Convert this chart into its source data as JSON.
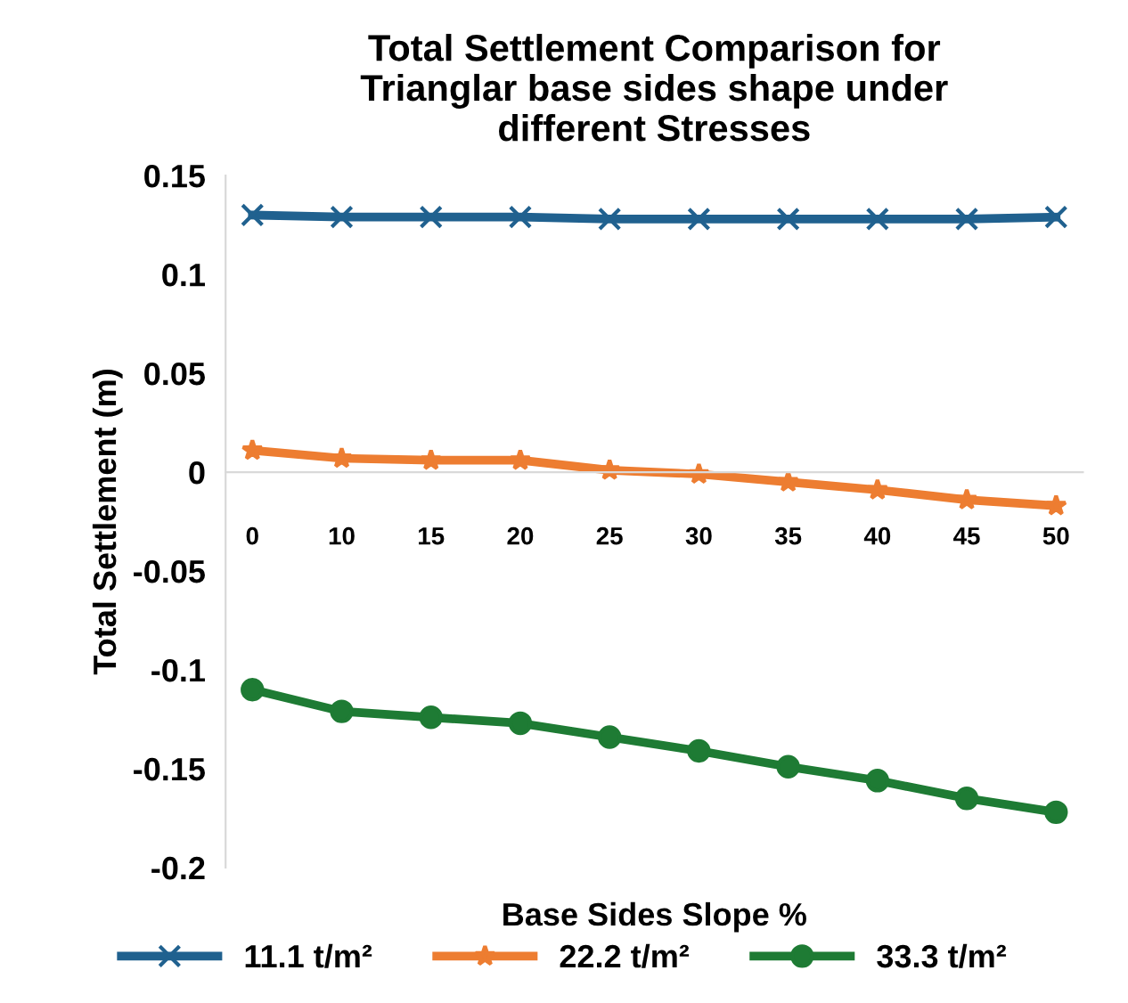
{
  "chart_data": {
    "type": "line",
    "title": "Total Settlement Comparison for\nTrianglar base sides shape under\ndifferent Stresses",
    "xlabel": "Base Sides Slope %",
    "ylabel": "Total Settlement (m)",
    "categories": [
      "0",
      "10",
      "15",
      "20",
      "25",
      "30",
      "35",
      "40",
      "45",
      "50"
    ],
    "series": [
      {
        "name": "11.1 t/m²",
        "color": "#20618f",
        "marker": "cross",
        "values": [
          0.13,
          0.129,
          0.129,
          0.129,
          0.128,
          0.128,
          0.128,
          0.128,
          0.128,
          0.129
        ]
      },
      {
        "name": "22.2 t/m²",
        "color": "#ed7d31",
        "marker": "star",
        "values": [
          0.011,
          0.007,
          0.006,
          0.006,
          0.001,
          -0.001,
          -0.005,
          -0.009,
          -0.014,
          -0.017
        ]
      },
      {
        "name": "33.3 t/m²",
        "color": "#1e7b34",
        "marker": "circle",
        "values": [
          -0.11,
          -0.121,
          -0.124,
          -0.127,
          -0.134,
          -0.141,
          -0.149,
          -0.156,
          -0.165,
          -0.172
        ]
      }
    ],
    "ylim": [
      -0.2,
      0.15
    ],
    "yticks": [
      -0.2,
      -0.15,
      -0.1,
      -0.05,
      0,
      0.05,
      0.1,
      0.15
    ],
    "grid": false,
    "legend": "bottom",
    "line_style": "solid"
  }
}
